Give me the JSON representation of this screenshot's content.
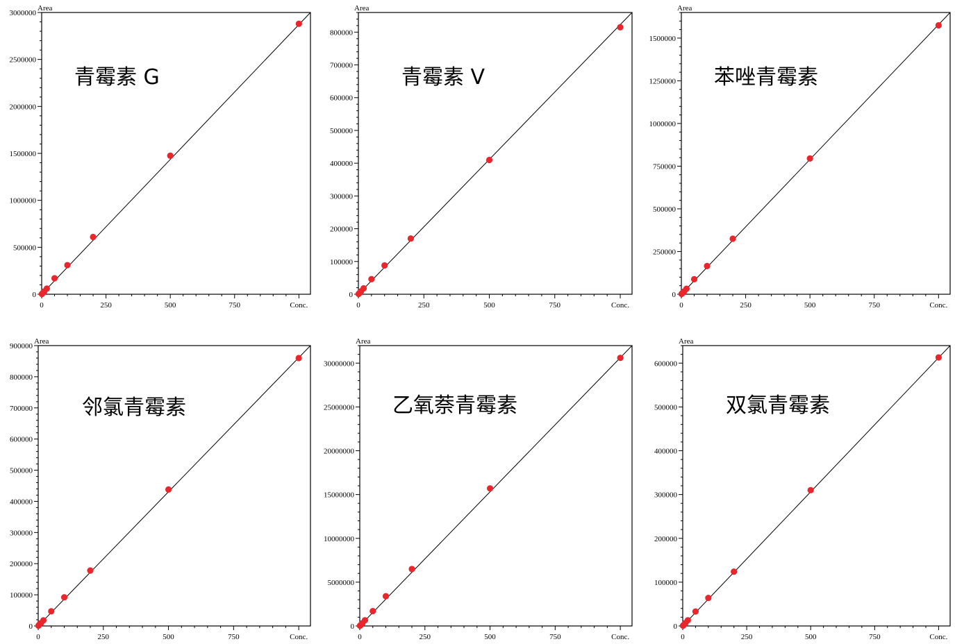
{
  "chart_data": [
    {
      "type": "scatter",
      "title": "青霉素 G",
      "ylabel": "Area",
      "xlabel": "Conc.",
      "xlim": [
        0,
        1000
      ],
      "ylim": [
        0,
        3000000
      ],
      "xticks": [
        "0",
        "250",
        "500",
        "750"
      ],
      "yticks": [
        "0",
        "500000",
        "1000000",
        "1500000",
        "2000000",
        "2500000",
        "3000000"
      ],
      "points": [
        [
          1,
          3000
        ],
        [
          5,
          15000
        ],
        [
          10,
          30000
        ],
        [
          20,
          60000
        ],
        [
          50,
          170000
        ],
        [
          100,
          310000
        ],
        [
          200,
          610000
        ],
        [
          500,
          1475000
        ],
        [
          1000,
          2880000
        ]
      ],
      "fit_line": [
        [
          0,
          0
        ],
        [
          1060,
          3000000
        ]
      ],
      "point_color": "#e8262c"
    },
    {
      "type": "scatter",
      "title": "青霉素 V",
      "ylabel": "Area",
      "xlabel": "Conc.",
      "xlim": [
        0,
        1000
      ],
      "ylim": [
        0,
        860000
      ],
      "xticks": [
        "0",
        "250",
        "500",
        "750"
      ],
      "yticks": [
        "0",
        "100000",
        "200000",
        "300000",
        "400000",
        "500000",
        "600000",
        "700000",
        "800000"
      ],
      "points": [
        [
          1,
          1000
        ],
        [
          5,
          4000
        ],
        [
          10,
          9000
        ],
        [
          20,
          18000
        ],
        [
          50,
          46000
        ],
        [
          100,
          88000
        ],
        [
          200,
          170000
        ],
        [
          500,
          410000
        ],
        [
          1000,
          815000
        ]
      ],
      "fit_line": [
        [
          0,
          0
        ],
        [
          1070,
          860000
        ]
      ],
      "point_color": "#e8262c"
    },
    {
      "type": "scatter",
      "title": "苯唑青霉素",
      "ylabel": "Area",
      "xlabel": "Conc.",
      "xlim": [
        0,
        1000
      ],
      "ylim": [
        0,
        1650000
      ],
      "xticks": [
        "0",
        "250",
        "500",
        "750"
      ],
      "yticks": [
        "0",
        "250000",
        "500000",
        "750000",
        "1000000",
        "1250000",
        "1500000"
      ],
      "points": [
        [
          1,
          2000
        ],
        [
          5,
          8000
        ],
        [
          10,
          16000
        ],
        [
          20,
          32000
        ],
        [
          50,
          88000
        ],
        [
          100,
          165000
        ],
        [
          200,
          325000
        ],
        [
          500,
          795000
        ],
        [
          1000,
          1575000
        ]
      ],
      "fit_line": [
        [
          0,
          0
        ],
        [
          1050,
          1650000
        ]
      ],
      "point_color": "#e8262c"
    },
    {
      "type": "scatter",
      "title": "邻氯青霉素",
      "ylabel": "Area",
      "xlabel": "Conc.",
      "xlim": [
        0,
        1000
      ],
      "ylim": [
        0,
        900000
      ],
      "xticks": [
        "0",
        "250",
        "500",
        "750"
      ],
      "yticks": [
        "0",
        "100000",
        "200000",
        "300000",
        "400000",
        "500000",
        "600000",
        "700000",
        "800000",
        "900000"
      ],
      "points": [
        [
          1,
          1000
        ],
        [
          5,
          5000
        ],
        [
          10,
          9000
        ],
        [
          20,
          18000
        ],
        [
          50,
          47000
        ],
        [
          100,
          92000
        ],
        [
          200,
          178000
        ],
        [
          500,
          438000
        ],
        [
          1000,
          860000
        ]
      ],
      "fit_line": [
        [
          0,
          0
        ],
        [
          1070,
          900000
        ]
      ],
      "point_color": "#e8262c"
    },
    {
      "type": "scatter",
      "title": "乙氧萘青霉素",
      "ylabel": "Area",
      "xlabel": "Conc.",
      "xlim": [
        0,
        1000
      ],
      "ylim": [
        0,
        32000000
      ],
      "xticks": [
        "0",
        "250",
        "500",
        "750"
      ],
      "yticks": [
        "0",
        "5000000",
        "10000000",
        "15000000",
        "20000000",
        "25000000",
        "30000000"
      ],
      "points": [
        [
          1,
          30000
        ],
        [
          5,
          150000
        ],
        [
          10,
          320000
        ],
        [
          20,
          650000
        ],
        [
          50,
          1700000
        ],
        [
          100,
          3400000
        ],
        [
          200,
          6500000
        ],
        [
          500,
          15700000
        ],
        [
          1000,
          30600000
        ]
      ],
      "fit_line": [
        [
          0,
          0
        ],
        [
          1060,
          32000000
        ]
      ],
      "point_color": "#e8262c"
    },
    {
      "type": "scatter",
      "title": "双氯青霉素",
      "ylabel": "Area",
      "xlabel": "Conc.",
      "xlim": [
        0,
        1000
      ],
      "ylim": [
        0,
        640000
      ],
      "xticks": [
        "0",
        "250",
        "500",
        "750"
      ],
      "yticks": [
        "0",
        "100000",
        "200000",
        "300000",
        "400000",
        "500000",
        "600000"
      ],
      "points": [
        [
          1,
          600
        ],
        [
          5,
          3000
        ],
        [
          10,
          6500
        ],
        [
          20,
          13000
        ],
        [
          50,
          33000
        ],
        [
          100,
          64000
        ],
        [
          200,
          124000
        ],
        [
          500,
          310000
        ],
        [
          1000,
          613000
        ]
      ],
      "fit_line": [
        [
          0,
          0
        ],
        [
          1045,
          640000
        ]
      ],
      "point_color": "#e8262c"
    }
  ]
}
